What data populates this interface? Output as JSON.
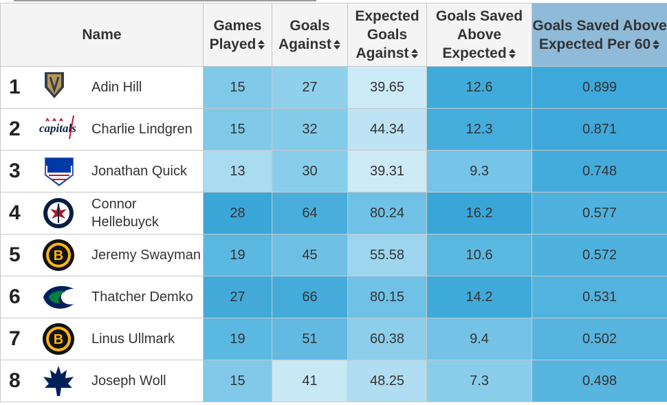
{
  "table": {
    "headers": [
      "Name",
      "Games Played",
      "Goals Against",
      "Expected Goals Against",
      "Goals Saved Above Expected",
      "Goals Saved Above Expected Per 60"
    ],
    "rows": [
      {
        "rank": "1",
        "name": "Adin Hill",
        "cells": [
          "15",
          "27",
          "39.65",
          "12.6",
          "0.899"
        ]
      },
      {
        "rank": "2",
        "name": "Charlie Lindgren",
        "cells": [
          "15",
          "32",
          "44.34",
          "12.3",
          "0.871"
        ]
      },
      {
        "rank": "3",
        "name": "Jonathan Quick",
        "cells": [
          "13",
          "30",
          "39.31",
          "9.3",
          "0.748"
        ]
      },
      {
        "rank": "4",
        "name": "Connor Hellebuyck",
        "cells": [
          "28",
          "64",
          "80.24",
          "16.2",
          "0.577"
        ]
      },
      {
        "rank": "5",
        "name": "Jeremy Swayman",
        "cells": [
          "19",
          "45",
          "55.58",
          "10.6",
          "0.572"
        ]
      },
      {
        "rank": "6",
        "name": "Thatcher Demko",
        "cells": [
          "27",
          "66",
          "80.15",
          "14.2",
          "0.531"
        ]
      },
      {
        "rank": "7",
        "name": "Linus Ullmark",
        "cells": [
          "19",
          "51",
          "60.38",
          "9.4",
          "0.502"
        ]
      },
      {
        "rank": "8",
        "name": "Joseph Woll",
        "cells": [
          "15",
          "41",
          "48.25",
          "7.3",
          "0.498"
        ]
      }
    ]
  }
}
